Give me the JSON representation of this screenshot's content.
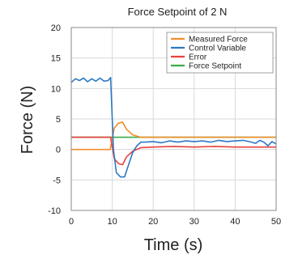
{
  "chart_data": {
    "type": "line",
    "title": "Force Setpoint of 2 N",
    "xlabel": "Time (s)",
    "ylabel": "Force (N)",
    "xlim": [
      0,
      50
    ],
    "ylim": [
      -10,
      20
    ],
    "xticks": [
      0,
      10,
      20,
      30,
      40,
      50
    ],
    "yticks": [
      20,
      15,
      10,
      5,
      0,
      -5,
      -10
    ],
    "grid": true,
    "legend_position": "top-right",
    "series": [
      {
        "name": "Measured Force",
        "color": "#f28e2b",
        "points": [
          [
            0,
            0
          ],
          [
            9.5,
            0
          ],
          [
            10.5,
            3.5
          ],
          [
            11.5,
            4.3
          ],
          [
            12.5,
            4.5
          ],
          [
            13.5,
            3.3
          ],
          [
            15,
            2.4
          ],
          [
            17,
            2.0
          ],
          [
            20,
            2.0
          ],
          [
            30,
            2.0
          ],
          [
            40,
            2.0
          ],
          [
            50,
            2.0
          ]
        ]
      },
      {
        "name": "Control Variable",
        "color": "#2e78c4",
        "points": [
          [
            0,
            11.0
          ],
          [
            1,
            11.6
          ],
          [
            2,
            11.3
          ],
          [
            3,
            11.7
          ],
          [
            4,
            11.1
          ],
          [
            5,
            11.6
          ],
          [
            6,
            11.2
          ],
          [
            7,
            11.7
          ],
          [
            8,
            11.2
          ],
          [
            9,
            11.3
          ],
          [
            9.6,
            11.8
          ],
          [
            10.3,
            0
          ],
          [
            11,
            -3.8
          ],
          [
            12,
            -4.5
          ],
          [
            13,
            -4.5
          ],
          [
            14,
            -2.5
          ],
          [
            15,
            -0.5
          ],
          [
            16,
            0.6
          ],
          [
            17,
            1.2
          ],
          [
            18,
            1.2
          ],
          [
            20,
            1.3
          ],
          [
            22,
            1.1
          ],
          [
            24,
            1.4
          ],
          [
            26,
            1.2
          ],
          [
            28,
            1.4
          ],
          [
            30,
            1.3
          ],
          [
            32,
            1.4
          ],
          [
            34,
            1.2
          ],
          [
            36,
            1.5
          ],
          [
            38,
            1.3
          ],
          [
            40,
            1.4
          ],
          [
            42,
            1.5
          ],
          [
            44,
            1.2
          ],
          [
            45,
            1.0
          ],
          [
            46,
            1.5
          ],
          [
            47,
            1.2
          ],
          [
            48,
            0.6
          ],
          [
            49,
            1.3
          ],
          [
            50,
            0.9
          ]
        ]
      },
      {
        "name": "Error",
        "color": "#e8413c",
        "points": [
          [
            0,
            2.0
          ],
          [
            9.6,
            2.0
          ],
          [
            10.5,
            -1.5
          ],
          [
            11.5,
            -2.3
          ],
          [
            12.5,
            -2.5
          ],
          [
            13.5,
            -1.2
          ],
          [
            15,
            -0.3
          ],
          [
            17,
            0.3
          ],
          [
            20,
            0.4
          ],
          [
            25,
            0.5
          ],
          [
            30,
            0.4
          ],
          [
            35,
            0.5
          ],
          [
            40,
            0.4
          ],
          [
            45,
            0.4
          ],
          [
            50,
            0.4
          ]
        ]
      },
      {
        "name": "Force Setpoint",
        "color": "#3aac46",
        "points": [
          [
            0,
            2.0
          ],
          [
            50,
            2.0
          ]
        ]
      }
    ]
  }
}
